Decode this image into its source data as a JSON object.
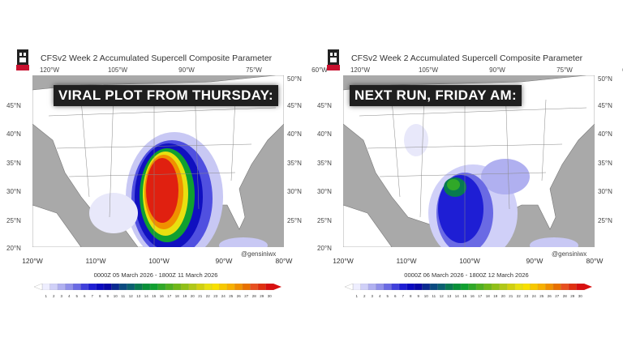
{
  "panels": [
    {
      "title": "CFSv2 Week 2 Accumulated Supercell Composite Parameter",
      "banner": "VIRAL PLOT FROM THURSDAY:",
      "dates": "0000Z 05  March  2026  - 1800Z 11  March  2026",
      "handle": "@gensiniwx"
    },
    {
      "title": "CFSv2 Week 2 Accumulated Supercell Composite Parameter",
      "banner": "NEXT RUN, FRIDAY AM:",
      "dates": "0000Z 06  March  2026  - 1800Z 12  March  2026",
      "handle": "@gensiniwx"
    }
  ],
  "lon_top": [
    "120°W",
    "105°W",
    "90°W",
    "75°W",
    "60°W"
  ],
  "lon_bottom": [
    "120°W",
    "110°W",
    "100°W",
    "90°W",
    "80°W"
  ],
  "lat_left": [
    "45°N",
    "40°N",
    "35°N",
    "30°N",
    "25°N",
    "20°N"
  ],
  "lat_right": [
    "50°N",
    "45°N",
    "40°N",
    "35°N",
    "30°N",
    "25°N"
  ],
  "colorbar": {
    "labels": [
      "1",
      "2",
      "3",
      "4",
      "5",
      "6",
      "7",
      "8",
      "9",
      "10",
      "11",
      "12",
      "13",
      "14",
      "15",
      "16",
      "17",
      "18",
      "19",
      "20",
      "21",
      "22",
      "23",
      "24",
      "25",
      "26",
      "27",
      "28",
      "29",
      "30"
    ],
    "colors": [
      "#eeeeff",
      "#d0d0f8",
      "#b0b0f0",
      "#9090ea",
      "#6a6ae4",
      "#4040dc",
      "#1e1ed4",
      "#0a0ac0",
      "#0808a8",
      "#0a2a90",
      "#0a4a80",
      "#0a6070",
      "#087a50",
      "#089038",
      "#10a030",
      "#30a828",
      "#50b020",
      "#70b818",
      "#90c018",
      "#b0c818",
      "#d0d010",
      "#e8e010",
      "#f8e000",
      "#f8c800",
      "#f8b000",
      "#f09000",
      "#e87000",
      "#e85020",
      "#e03010",
      "#d81010"
    ]
  },
  "colors": {
    "ocean": "#a9a9a9",
    "land": "#ffffff",
    "banner_bg": "#1f1f1f",
    "logo_red": "#c8102e"
  }
}
